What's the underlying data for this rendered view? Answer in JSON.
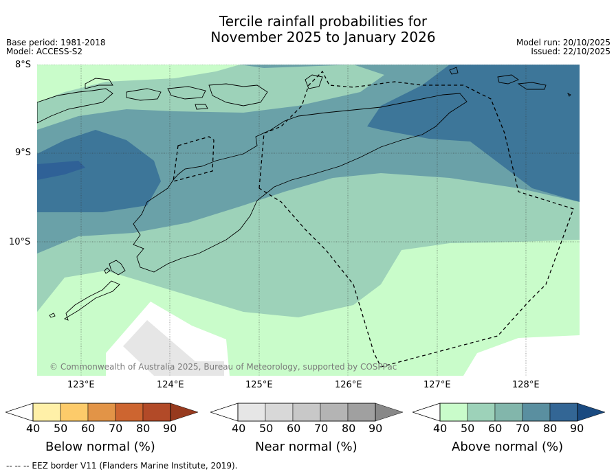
{
  "title_line1": "Tercile rainfall probabilities for",
  "title_line2": "November 2025 to January 2026",
  "base_period": "Base period: 1981-2018",
  "model": "Model: ACCESS-S2",
  "model_run": "Model run: 20/10/2025",
  "issued": "Issued: 22/10/2025",
  "lat_labels": [
    "8°S",
    "9°S",
    "10°S"
  ],
  "lon_labels": [
    "123°E",
    "124°E",
    "125°E",
    "126°E",
    "127°E",
    "128°E"
  ],
  "copyright": "© Commonwealth of Australia 2025, Bureau of Meteorology, supported by COSPPac",
  "colorbars": [
    {
      "title": "Below normal (%)",
      "ticks": [
        "40",
        "50",
        "60",
        "70",
        "80",
        "90"
      ],
      "colors": [
        "#fff0a8",
        "#fdcb6a",
        "#e29447",
        "#cd6530",
        "#b24a28",
        "#973a1e"
      ]
    },
    {
      "title": "Near normal (%)",
      "ticks": [
        "40",
        "50",
        "60",
        "70",
        "80",
        "90"
      ],
      "colors": [
        "#e6e6e6",
        "#d8d8d8",
        "#c8c8c8",
        "#b4b4b4",
        "#a0a0a0",
        "#888888"
      ]
    },
    {
      "title": "Above normal (%)",
      "ticks": [
        "40",
        "50",
        "60",
        "70",
        "80",
        "90"
      ],
      "colors": [
        "#c9fcca",
        "#9dd2b9",
        "#82b6ab",
        "#5a8fa0",
        "#336695",
        "#1a4a80"
      ]
    }
  ],
  "footer": "--  --  -- EEZ border V11 (Flanders Marine Institute, 2019)."
}
